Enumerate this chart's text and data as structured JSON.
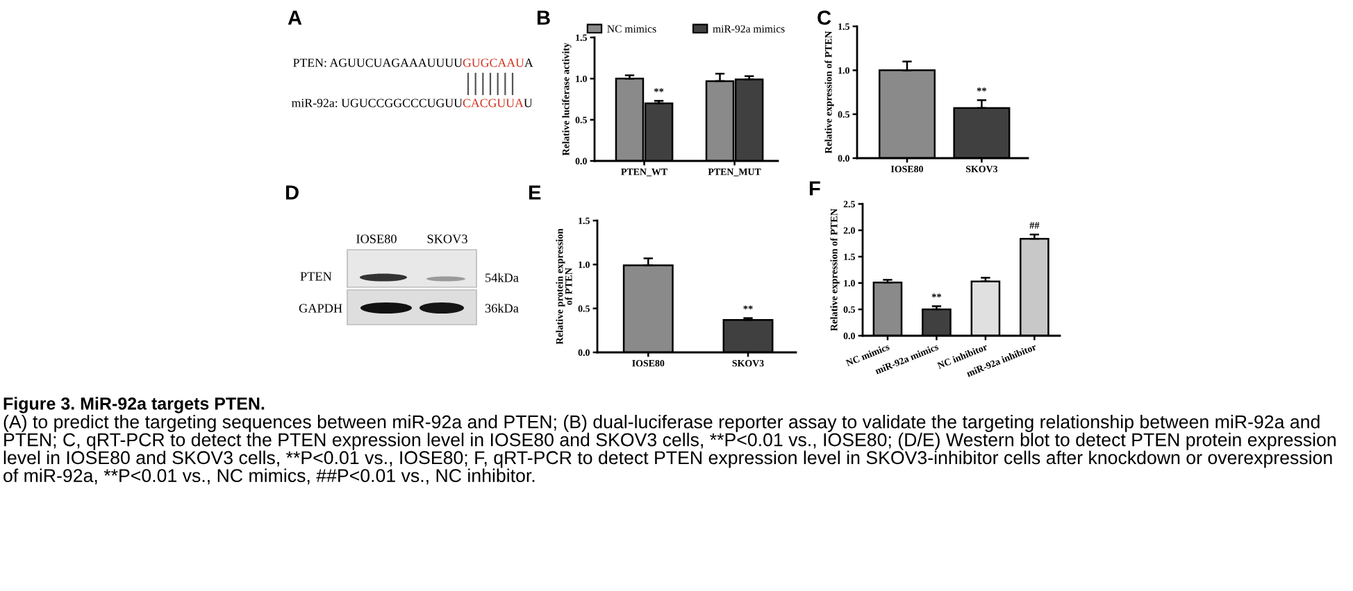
{
  "chart_data": [
    {
      "type": "other",
      "title": "A",
      "annotations": [
        "PTEN: AGUUCUAGAAAUUUU",
        "GUGCAAU",
        "A",
        "miR-92a: UGUCCGGCCCUGUU",
        "CACGUUA",
        "U"
      ]
    },
    {
      "type": "bar",
      "title": "B",
      "categories": [
        "PTEN_WT",
        "PTEN_MUT"
      ],
      "series": [
        {
          "name": "NC mimics",
          "color": "#8a8a8a",
          "values": [
            1.0,
            0.97
          ],
          "errors": [
            [
              1.0,
              1.04
            ],
            [
              0.97,
              1.06
            ]
          ]
        },
        {
          "name": "miR-92a mimics",
          "color": "#404040",
          "values": [
            0.7,
            0.99
          ],
          "errors": [
            [
              0.7,
              0.73
            ],
            [
              0.99,
              1.03
            ]
          ],
          "value_labels": [
            "**",
            null
          ]
        }
      ],
      "ylabel": "Relative luciferase activity",
      "ylim": [
        0,
        1.5
      ],
      "yticks": [
        {
          "value": 0,
          "label": "0.0"
        },
        {
          "value": 0.5,
          "label": "0.5"
        },
        {
          "value": 1,
          "label": "1.0"
        },
        {
          "value": 1.5,
          "label": "1.5"
        }
      ],
      "legend": "top"
    },
    {
      "type": "bar",
      "title": "C",
      "categories": [
        "IOSE80",
        "SKOV3"
      ],
      "values": [
        1.0,
        0.57
      ],
      "colors": [
        "#8a8a8a",
        "#404040"
      ],
      "errors": [
        [
          1.0,
          1.1
        ],
        [
          0.57,
          0.66
        ]
      ],
      "value_labels": [
        null,
        "**"
      ],
      "ylabel": "Relative expression of PTEN",
      "ylim": [
        0,
        1.5
      ],
      "yticks": [
        {
          "value": 0,
          "label": "0.0"
        },
        {
          "value": 0.5,
          "label": "0.5"
        },
        {
          "value": 1,
          "label": "1.0"
        },
        {
          "value": 1.5,
          "label": "1.5"
        }
      ]
    },
    {
      "type": "other",
      "title": "D",
      "annotations": [
        "IOSE80",
        "SKOV3",
        "PTEN",
        "GAPDH",
        "54kDa",
        "36kDa"
      ]
    },
    {
      "type": "bar",
      "title": "E",
      "categories": [
        "IOSE80",
        "SKOV3"
      ],
      "values": [
        0.99,
        0.37
      ],
      "colors": [
        "#8a8a8a",
        "#404040"
      ],
      "errors": [
        [
          0.99,
          1.07
        ],
        [
          0.37,
          0.39
        ]
      ],
      "value_labels": [
        null,
        "**"
      ],
      "ylabel": "Relative protein expression\nof PTEN",
      "ylim": [
        0,
        1.5
      ],
      "yticks": [
        {
          "value": 0,
          "label": "0.0"
        },
        {
          "value": 0.5,
          "label": "0.5"
        },
        {
          "value": 1,
          "label": "1.0"
        },
        {
          "value": 1.5,
          "label": "1.5"
        }
      ]
    },
    {
      "type": "bar",
      "title": "F",
      "categories": [
        "NC mimics",
        "miR-92a mimics",
        "NC inhibitor",
        "miR-92a inhibitor"
      ],
      "values": [
        1.01,
        0.5,
        1.03,
        1.84
      ],
      "colors": [
        "#8a8a8a",
        "#404040",
        "#e0e0e0",
        "#c8c8c8"
      ],
      "errors": [
        [
          1.01,
          1.06
        ],
        [
          0.5,
          0.56
        ],
        [
          1.03,
          1.1
        ],
        [
          1.84,
          1.92
        ]
      ],
      "value_labels": [
        null,
        "**",
        null,
        "##"
      ],
      "ylabel": "Relative expression of PTEN",
      "ylim": [
        0,
        2.5
      ],
      "yticks": [
        {
          "value": 0,
          "label": "0.0"
        },
        {
          "value": 0.5,
          "label": "0.5"
        },
        {
          "value": 1,
          "label": "1.0"
        },
        {
          "value": 1.5,
          "label": "1.5"
        },
        {
          "value": 2,
          "label": "2.0"
        },
        {
          "value": 2.5,
          "label": "2.5"
        }
      ]
    },
    {
      "type": "other",
      "title": "Figure 3. MiR-92a targets PTEN.",
      "annotations": [
        "(A) to predict the targeting sequences between miR-92a and PTEN; (B) dual-luciferase reporter assay to validate the targeting relationship between miR-92a and PTEN; C, qRT-PCR to detect the PTEN expression level in IOSE80 and SKOV3 cells, **P<0.01 vs., IOSE80; (D/E) Western blot to detect PTEN protein expression level in IOSE80 and SKOV3 cells, **P<0.01 vs., IOSE80; F, qRT-PCR to detect PTEN expression level in SKOV3-inhibitor cells after knockdown or overexpression of miR-92a, **P<0.01 vs., NC mimics, ##P<0.01 vs., NC inhibitor."
      ]
    }
  ]
}
